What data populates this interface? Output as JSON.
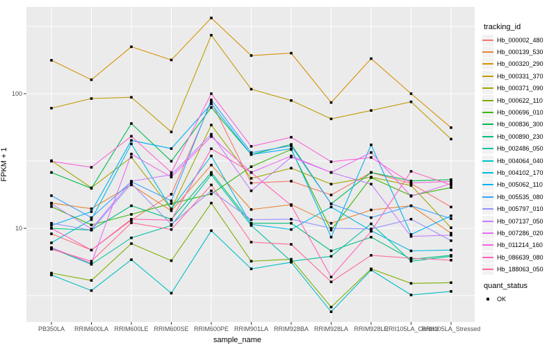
{
  "style": {
    "panel_bg": "#EBEBEB",
    "grid_color": "#FFFFFF",
    "tick_label_color": "#4D4D4D",
    "tick_mark_color": "#333333",
    "point_color": "#000000",
    "key_bg": "#F2F2F2"
  },
  "chart_data": {
    "type": "line",
    "x_type": "categorical",
    "xlabel": "sample_name",
    "ylabel": "FPKM + 1",
    "y_scale": "log10",
    "y_ticks": [
      100,
      10
    ],
    "y_minor_ticks": [
      316.228,
      31.623,
      3.162
    ],
    "ylim": [
      2.0,
      441
    ],
    "grid": true,
    "legend_position": "right",
    "legend_title": "tracking_id",
    "point_legend": {
      "title": "quant_status",
      "items": [
        "OK"
      ]
    },
    "categories": [
      "PB350LA",
      "RRIM600LA",
      "RRIM600LE",
      "RRIM600SE",
      "RRIM600PE",
      "RRIM901LA",
      "RRIM928BA",
      "RRIM928LA",
      "RRIM928LE",
      "RRII105LA_Control",
      "RRII105LA_Stressed"
    ],
    "series": [
      {
        "name": "Hb_000002_480",
        "color": "#F8766D",
        "values": [
          9.1,
          6.9,
          11.5,
          17.9,
          87,
          21.7,
          22.4,
          17.7,
          26,
          21.5,
          14.4
        ]
      },
      {
        "name": "Hb_000139_530",
        "color": "#EA8331",
        "values": [
          15.4,
          14,
          21,
          13.5,
          29.5,
          13.8,
          15,
          10.9,
          13.7,
          14.7,
          9.2
        ]
      },
      {
        "name": "Hb_000320_290",
        "color": "#D89000",
        "values": [
          177,
          127,
          223,
          178,
          365,
          192,
          200,
          86,
          182,
          100,
          56
        ]
      },
      {
        "name": "Hb_000331_370",
        "color": "#C09B00",
        "values": [
          78,
          92,
          94,
          52,
          272,
          108,
          89,
          65,
          75,
          87,
          46
        ]
      },
      {
        "name": "Hb_000371_090",
        "color": "#A3A500",
        "values": [
          31.8,
          20,
          33.7,
          13.9,
          58.5,
          23.5,
          28,
          21.3,
          24,
          20.8,
          10.1
        ]
      },
      {
        "name": "Hb_000622_110",
        "color": "#7CAE00",
        "values": [
          4.65,
          4.1,
          7.7,
          5.75,
          15.4,
          5.7,
          5.9,
          2.6,
          5.0,
          3.9,
          3.95
        ]
      },
      {
        "name": "Hb_000696_010",
        "color": "#39B600",
        "values": [
          14.5,
          10.6,
          12.7,
          15.3,
          18,
          28.7,
          38.5,
          9.7,
          23.8,
          17.5,
          20.1
        ]
      },
      {
        "name": "Hb_000836_300",
        "color": "#00BB4E",
        "values": [
          26,
          19.8,
          60,
          31.5,
          79,
          35.3,
          42,
          15.2,
          26,
          22.5,
          23
        ]
      },
      {
        "name": "Hb_000890_230",
        "color": "#00BF7D",
        "values": [
          10.0,
          9.7,
          14.7,
          11.7,
          26,
          10.9,
          10.9,
          6.8,
          8.6,
          5.9,
          6.3
        ]
      },
      {
        "name": "Hb_002486_050",
        "color": "#00C1A3",
        "values": [
          7.1,
          5.4,
          8.5,
          10.5,
          25,
          10.5,
          5.7,
          6.2,
          10.8,
          5.7,
          6.2
        ]
      },
      {
        "name": "Hb_004064_040",
        "color": "#00BFC4",
        "values": [
          4.5,
          3.45,
          5.85,
          3.3,
          9.6,
          5.0,
          5.6,
          2.4,
          4.9,
          3.2,
          3.4
        ]
      },
      {
        "name": "Hb_004102_170",
        "color": "#00BAE0",
        "values": [
          7.8,
          11.6,
          42.4,
          14.0,
          34.5,
          10.7,
          9.8,
          14.4,
          9.6,
          6.8,
          6.9
        ]
      },
      {
        "name": "Hb_005062_110",
        "color": "#00B0F6",
        "values": [
          10.5,
          13.3,
          45,
          39.1,
          84,
          35.3,
          39,
          8.6,
          41.7,
          9.0,
          12.4
        ]
      },
      {
        "name": "Hb_005535_080",
        "color": "#35A2FF",
        "values": [
          17.5,
          12,
          22.2,
          16,
          90,
          36.5,
          41,
          15.2,
          12.0,
          14.7,
          11.8
        ]
      },
      {
        "name": "Hb_005797_010",
        "color": "#9590FF",
        "values": [
          10.9,
          9.7,
          21.5,
          10.7,
          19,
          11.6,
          11.7,
          10.0,
          9.9,
          11.7,
          8.1
        ]
      },
      {
        "name": "Hb_007137_050",
        "color": "#C77CFF",
        "values": [
          15.2,
          9.9,
          22.4,
          25,
          50,
          19,
          33.8,
          26,
          21.3,
          8.7,
          8.9
        ]
      },
      {
        "name": "Hb_007286_020",
        "color": "#E76BF3",
        "values": [
          7.2,
          5.5,
          35.6,
          24,
          48,
          26,
          34.5,
          26,
          36.6,
          17.3,
          21.5
        ]
      },
      {
        "name": "Hb_011214_160",
        "color": "#FA62DB",
        "values": [
          31.5,
          28.4,
          48.3,
          26,
          100,
          40.6,
          47.5,
          31.2,
          33.6,
          21.7,
          22.3
        ]
      },
      {
        "name": "Hb_086639_080",
        "color": "#FF62BC",
        "values": [
          10.0,
          6.9,
          11.7,
          11.5,
          39,
          26,
          14.8,
          4.35,
          9.5,
          26.5,
          21.0
        ]
      },
      {
        "name": "Hb_188063_050",
        "color": "#FF6A98",
        "values": [
          7.0,
          5.7,
          11.0,
          9.8,
          21,
          7.9,
          7.6,
          4.0,
          6.3,
          6.0,
          5.8
        ]
      }
    ]
  }
}
